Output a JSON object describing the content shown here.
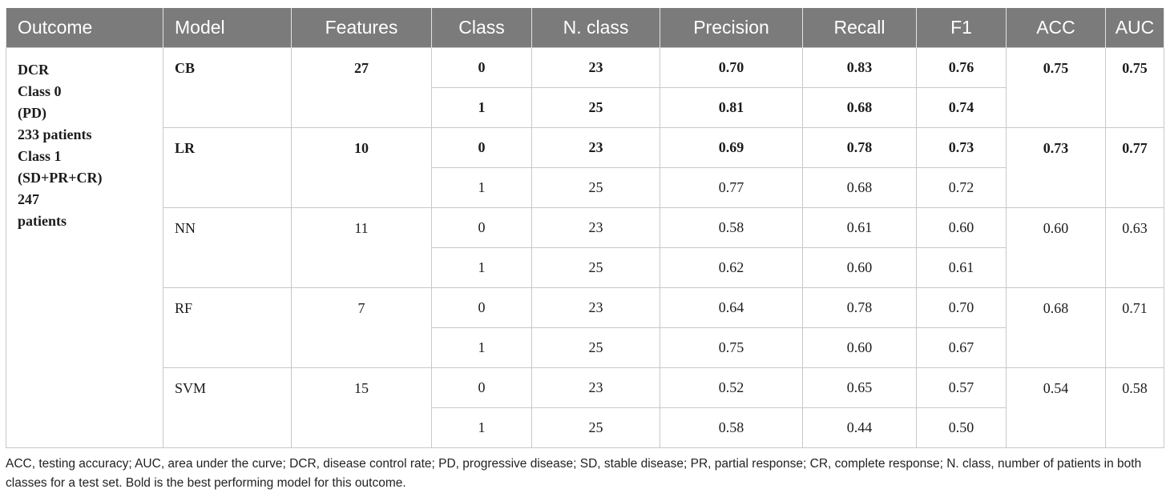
{
  "headers": [
    "Outcome",
    "Model",
    "Features",
    "Class",
    "N. class",
    "Precision",
    "Recall",
    "F1",
    "ACC",
    "AUC"
  ],
  "outcome": {
    "lines": [
      "DCR",
      "Class 0",
      "(PD)",
      "233 patients",
      "Class 1",
      "(SD+PR+CR)",
      "247",
      "patients"
    ]
  },
  "models": [
    {
      "model": "CB",
      "features": "27",
      "acc": "0.75",
      "auc": "0.75",
      "bold": true,
      "rows": [
        {
          "class": "0",
          "n": "23",
          "precision": "0.70",
          "recall": "0.83",
          "f1": "0.76",
          "bold": true
        },
        {
          "class": "1",
          "n": "25",
          "precision": "0.81",
          "recall": "0.68",
          "f1": "0.74",
          "bold": true
        }
      ]
    },
    {
      "model": "LR",
      "features": "10",
      "acc": "0.73",
      "auc": "0.77",
      "bold": true,
      "rows": [
        {
          "class": "0",
          "n": "23",
          "precision": "0.69",
          "recall": "0.78",
          "f1": "0.73",
          "bold": true
        },
        {
          "class": "1",
          "n": "25",
          "precision": "0.77",
          "recall": "0.68",
          "f1": "0.72",
          "bold": false
        }
      ]
    },
    {
      "model": "NN",
      "features": "11",
      "acc": "0.60",
      "auc": "0.63",
      "bold": false,
      "rows": [
        {
          "class": "0",
          "n": "23",
          "precision": "0.58",
          "recall": "0.61",
          "f1": "0.60",
          "bold": false
        },
        {
          "class": "1",
          "n": "25",
          "precision": "0.62",
          "recall": "0.60",
          "f1": "0.61",
          "bold": false
        }
      ]
    },
    {
      "model": "RF",
      "features": "7",
      "acc": "0.68",
      "auc": "0.71",
      "bold": false,
      "rows": [
        {
          "class": "0",
          "n": "23",
          "precision": "0.64",
          "recall": "0.78",
          "f1": "0.70",
          "bold": false
        },
        {
          "class": "1",
          "n": "25",
          "precision": "0.75",
          "recall": "0.60",
          "f1": "0.67",
          "bold": false
        }
      ]
    },
    {
      "model": "SVM",
      "features": "15",
      "acc": "0.54",
      "auc": "0.58",
      "bold": false,
      "rows": [
        {
          "class": "0",
          "n": "23",
          "precision": "0.52",
          "recall": "0.65",
          "f1": "0.57",
          "bold": false
        },
        {
          "class": "1",
          "n": "25",
          "precision": "0.58",
          "recall": "0.44",
          "f1": "0.50",
          "bold": false
        }
      ]
    }
  ],
  "footnote": "ACC, testing accuracy; AUC, area under the curve; DCR, disease control rate; PD, progressive disease; SD, stable disease; PR, partial response; CR, complete response; N. class, number of patients in both classes for a test set. Bold is the best performing model for this outcome.",
  "colors": {
    "header_bg": "#7b7b7b",
    "header_text": "#ffffff",
    "border": "#c8c8c8"
  }
}
